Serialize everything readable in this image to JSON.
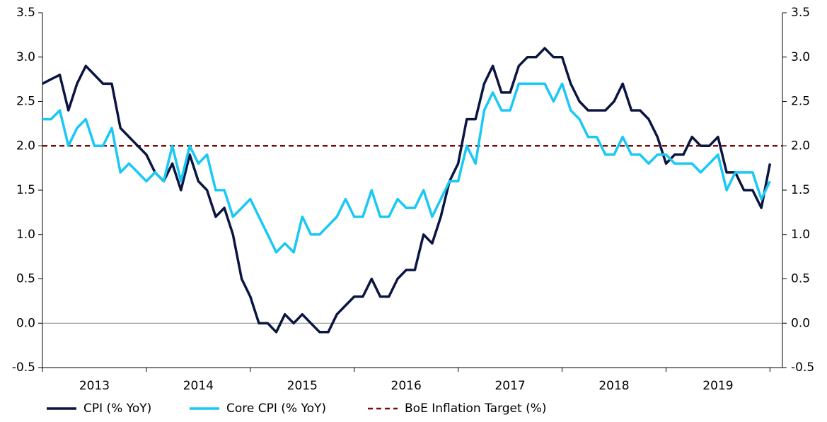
{
  "chart_data": {
    "type": "line",
    "x": [
      2013,
      2013.083,
      2013.167,
      2013.25,
      2013.333,
      2013.417,
      2013.5,
      2013.583,
      2013.667,
      2013.75,
      2013.833,
      2013.917,
      2014,
      2014.083,
      2014.167,
      2014.25,
      2014.333,
      2014.417,
      2014.5,
      2014.583,
      2014.667,
      2014.75,
      2014.833,
      2014.917,
      2015,
      2015.083,
      2015.167,
      2015.25,
      2015.333,
      2015.417,
      2015.5,
      2015.583,
      2015.667,
      2015.75,
      2015.833,
      2015.917,
      2016,
      2016.083,
      2016.167,
      2016.25,
      2016.333,
      2016.417,
      2016.5,
      2016.583,
      2016.667,
      2016.75,
      2016.833,
      2016.917,
      2017,
      2017.083,
      2017.167,
      2017.25,
      2017.333,
      2017.417,
      2017.5,
      2017.583,
      2017.667,
      2017.75,
      2017.833,
      2017.917,
      2018,
      2018.083,
      2018.167,
      2018.25,
      2018.333,
      2018.417,
      2018.5,
      2018.583,
      2018.667,
      2018.75,
      2018.833,
      2018.917,
      2019,
      2019.083,
      2019.167,
      2019.25,
      2019.333,
      2019.417,
      2019.5,
      2019.583,
      2019.667,
      2019.75,
      2019.833,
      2019.917,
      2020
    ],
    "series": [
      {
        "name": "CPI (% YoY)",
        "color": "#0b1541",
        "values": [
          2.7,
          2.75,
          2.8,
          2.4,
          2.7,
          2.9,
          2.8,
          2.7,
          2.7,
          2.2,
          2.1,
          2.0,
          1.9,
          1.7,
          1.6,
          1.8,
          1.5,
          1.9,
          1.6,
          1.5,
          1.2,
          1.3,
          1.0,
          0.5,
          0.3,
          0.0,
          0.0,
          -0.1,
          0.1,
          0.0,
          0.1,
          0.0,
          -0.1,
          -0.1,
          0.1,
          0.2,
          0.3,
          0.3,
          0.5,
          0.3,
          0.3,
          0.5,
          0.6,
          0.6,
          1.0,
          0.9,
          1.2,
          1.6,
          1.8,
          2.3,
          2.3,
          2.7,
          2.9,
          2.6,
          2.6,
          2.9,
          3.0,
          3.0,
          3.1,
          3.0,
          3.0,
          2.7,
          2.5,
          2.4,
          2.4,
          2.4,
          2.5,
          2.7,
          2.4,
          2.4,
          2.3,
          2.1,
          1.8,
          1.9,
          1.9,
          2.1,
          2.0,
          2.0,
          2.1,
          1.7,
          1.7,
          1.5,
          1.5,
          1.3,
          1.8
        ]
      },
      {
        "name": "Core CPI (% YoY)",
        "color": "#19c8f5",
        "values": [
          2.3,
          2.3,
          2.4,
          2.0,
          2.2,
          2.3,
          2.0,
          2.0,
          2.2,
          1.7,
          1.8,
          1.7,
          1.6,
          1.7,
          1.6,
          2.0,
          1.6,
          2.0,
          1.8,
          1.9,
          1.5,
          1.5,
          1.2,
          1.3,
          1.4,
          1.2,
          1.0,
          0.8,
          0.9,
          0.8,
          1.2,
          1.0,
          1.0,
          1.1,
          1.2,
          1.4,
          1.2,
          1.2,
          1.5,
          1.2,
          1.2,
          1.4,
          1.3,
          1.3,
          1.5,
          1.2,
          1.4,
          1.6,
          1.6,
          2.0,
          1.8,
          2.4,
          2.6,
          2.4,
          2.4,
          2.7,
          2.7,
          2.7,
          2.7,
          2.5,
          2.7,
          2.4,
          2.3,
          2.1,
          2.1,
          1.9,
          1.9,
          2.1,
          1.9,
          1.9,
          1.8,
          1.9,
          1.9,
          1.8,
          1.8,
          1.8,
          1.7,
          1.8,
          1.9,
          1.5,
          1.7,
          1.7,
          1.7,
          1.4,
          1.6
        ]
      }
    ],
    "reference_line": {
      "name": "BoE Inflation Target (%)",
      "value": 2,
      "color": "#7a0a0a",
      "dashed": true
    },
    "xlim": [
      2013,
      2020.12
    ],
    "xticks": [
      2013,
      2014,
      2015,
      2016,
      2017,
      2018,
      2019
    ],
    "ylim": [
      -0.5,
      3.5
    ],
    "yticks": [
      -0.5,
      {
        "value": 0,
        "label": "0.0"
      },
      0.5,
      {
        "value": 1,
        "label": "1.0"
      },
      1.5,
      {
        "value": 2,
        "label": "2.0"
      },
      2.5,
      {
        "value": 3,
        "label": "3.0"
      },
      3.5
    ],
    "y2lim": [
      -0.5,
      3.5
    ],
    "y2ticks": [
      -0.5,
      {
        "value": 0,
        "label": "0.0"
      },
      0.5,
      {
        "value": 1,
        "label": "1.0"
      },
      1.5,
      {
        "value": 2,
        "label": "2.0"
      },
      2.5,
      {
        "value": 3,
        "label": "3.0"
      },
      3.5
    ],
    "legend": "bottom"
  }
}
